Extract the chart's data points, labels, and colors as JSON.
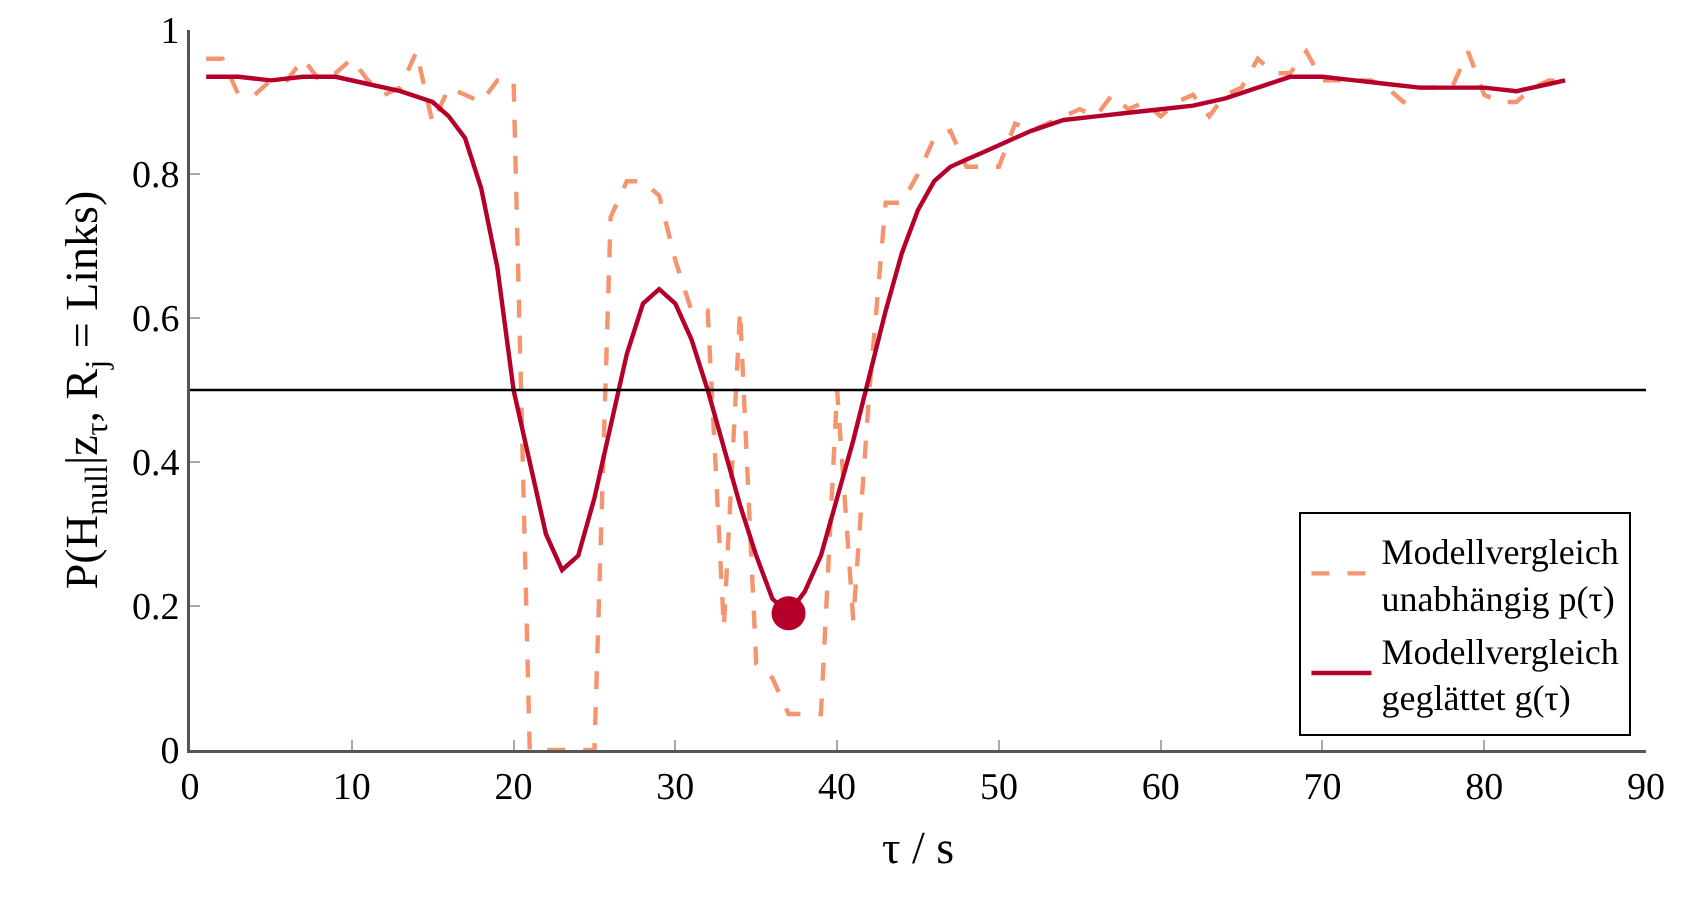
{
  "chart_data": {
    "type": "line",
    "xlabel": "τ / s",
    "ylabel": "P(H$_{null}$|z$_{τ}$, R$_{j}$ = Links)",
    "xlim": [
      0,
      90
    ],
    "xticks": [
      0,
      10,
      20,
      30,
      40,
      50,
      60,
      70,
      80,
      90
    ],
    "ylim": [
      0,
      1
    ],
    "yticks": [
      0,
      0.2,
      0.4,
      0.6,
      0.8,
      1
    ],
    "grid": false,
    "legend": "bottom right",
    "marker": "none",
    "series": [
      {
        "name": "Modellvergleich\nunabhängig p(τ)",
        "color": "#f4956f",
        "line_style": "dashed",
        "x": [
          1,
          2,
          3,
          4,
          5,
          6,
          7,
          8,
          9,
          10,
          11,
          12,
          13,
          14,
          15,
          16,
          17,
          18,
          19,
          20,
          21,
          22,
          23,
          24,
          25,
          26,
          27,
          28,
          29,
          30,
          31,
          32,
          33,
          34,
          35,
          36,
          37,
          38,
          39,
          40,
          41,
          42,
          43,
          44,
          45,
          46,
          47,
          48,
          49,
          50,
          51,
          52,
          53,
          54,
          55,
          56,
          57,
          58,
          59,
          60,
          61,
          62,
          63,
          64,
          65,
          66,
          67,
          68,
          69,
          70,
          71,
          72,
          73,
          74,
          75,
          76,
          77,
          78,
          79,
          80,
          81,
          82,
          83,
          84,
          85
        ],
        "values": [
          0.96,
          0.96,
          0.91,
          0.91,
          0.93,
          0.93,
          0.96,
          0.93,
          0.94,
          0.96,
          0.93,
          0.91,
          0.92,
          0.97,
          0.87,
          0.92,
          0.91,
          0.9,
          0.93,
          0.93,
          0,
          0,
          0,
          0,
          0,
          0.74,
          0.79,
          0.79,
          0.77,
          0.68,
          0.61,
          0.61,
          0.17,
          0.61,
          0.12,
          0.1,
          0.05,
          0.05,
          0.05,
          0.5,
          0.18,
          0.5,
          0.76,
          0.76,
          0.8,
          0.85,
          0.86,
          0.81,
          0.81,
          0.81,
          0.87,
          0.86,
          0.87,
          0.88,
          0.89,
          0.88,
          0.91,
          0.89,
          0.9,
          0.88,
          0.9,
          0.91,
          0.88,
          0.91,
          0.92,
          0.96,
          0.94,
          0.94,
          0.97,
          0.93,
          0.93,
          0.93,
          0.93,
          0.92,
          0.9,
          0.92,
          0.92,
          0.92,
          0.97,
          0.91,
          0.9,
          0.9,
          0.92,
          0.93,
          0.93
        ]
      },
      {
        "name": "Modellvergleich\ngeglättet g(τ)",
        "color": "#b5002a",
        "line_style": "solid",
        "x": [
          1,
          3,
          5,
          7,
          9,
          11,
          13,
          15,
          16,
          17,
          18,
          19,
          20,
          21,
          22,
          23,
          24,
          25,
          26,
          27,
          28,
          29,
          30,
          31,
          32,
          33,
          34,
          35,
          36,
          37,
          38,
          39,
          40,
          41,
          42,
          43,
          44,
          45,
          46,
          47,
          48,
          49,
          50,
          52,
          54,
          56,
          58,
          60,
          62,
          64,
          66,
          68,
          70,
          72,
          74,
          76,
          78,
          80,
          82,
          84,
          85
        ],
        "values": [
          0.935,
          0.935,
          0.93,
          0.935,
          0.935,
          0.925,
          0.915,
          0.9,
          0.88,
          0.85,
          0.78,
          0.67,
          0.5,
          0.4,
          0.3,
          0.25,
          0.27,
          0.35,
          0.45,
          0.55,
          0.62,
          0.64,
          0.62,
          0.57,
          0.5,
          0.42,
          0.34,
          0.27,
          0.21,
          0.19,
          0.22,
          0.27,
          0.35,
          0.43,
          0.52,
          0.61,
          0.69,
          0.75,
          0.79,
          0.81,
          0.82,
          0.83,
          0.84,
          0.86,
          0.875,
          0.88,
          0.885,
          0.89,
          0.895,
          0.905,
          0.92,
          0.935,
          0.935,
          0.93,
          0.925,
          0.92,
          0.92,
          0.92,
          0.915,
          0.925,
          0.93
        ]
      },
      {
        "type": "scatter",
        "marker": "circle",
        "color": "#b5002a",
        "x": [
          37
        ],
        "values": [
          0.19
        ]
      }
    ],
    "ref_lines": [
      {
        "axis": "y",
        "value": 0.5,
        "color": "#000000"
      }
    ]
  }
}
